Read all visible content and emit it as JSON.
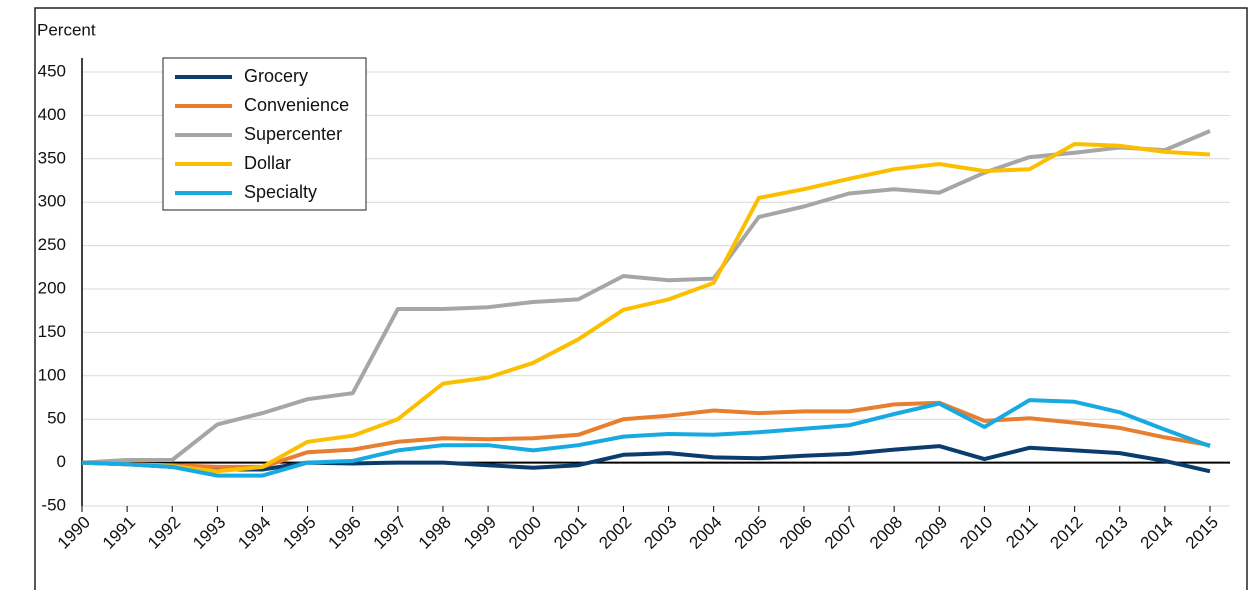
{
  "chart_data": {
    "type": "line",
    "y_label": "Percent",
    "categories": [
      "1990",
      "1991",
      "1992",
      "1993",
      "1994",
      "1995",
      "1996",
      "1997",
      "1998",
      "1999",
      "2000",
      "2001",
      "2002",
      "2003",
      "2004",
      "2005",
      "2006",
      "2007",
      "2008",
      "2009",
      "2010",
      "2011",
      "2012",
      "2013",
      "2014",
      "2015"
    ],
    "series": [
      {
        "name": "Grocery",
        "color": "#0b3c6e",
        "values": [
          0,
          -2,
          -5,
          -8,
          -8,
          0,
          -1,
          0,
          0,
          -3,
          -6,
          -3,
          9,
          11,
          6,
          5,
          8,
          10,
          15,
          19,
          4,
          17,
          14,
          11,
          2,
          -10
        ]
      },
      {
        "name": "Convenience",
        "color": "#e87e2f",
        "values": [
          0,
          -2,
          -3,
          -5,
          -5,
          12,
          15,
          24,
          28,
          27,
          28,
          32,
          50,
          54,
          60,
          57,
          59,
          59,
          67,
          69,
          48,
          51,
          46,
          40,
          29,
          20
        ]
      },
      {
        "name": "Supercenter",
        "color": "#a6a6a6",
        "values": [
          0,
          3,
          3,
          44,
          57,
          73,
          80,
          177,
          177,
          179,
          185,
          188,
          215,
          210,
          212,
          283,
          295,
          310,
          315,
          311,
          334,
          352,
          357,
          363,
          360,
          382
        ]
      },
      {
        "name": "Dollar",
        "color": "#fcbf00",
        "values": [
          0,
          -2,
          -4,
          -10,
          -5,
          24,
          31,
          50,
          91,
          98,
          115,
          142,
          176,
          188,
          207,
          305,
          315,
          327,
          338,
          344,
          336,
          338,
          367,
          365,
          358,
          355
        ]
      },
      {
        "name": "Specialty",
        "color": "#17a9e1",
        "values": [
          0,
          -2,
          -5,
          -15,
          -15,
          0,
          2,
          14,
          20,
          20,
          14,
          20,
          30,
          33,
          32,
          35,
          39,
          43,
          56,
          68,
          41,
          72,
          70,
          58,
          38,
          19
        ]
      }
    ],
    "ylim": [
      -50,
      450
    ],
    "yticks": [
      -50,
      0,
      50,
      100,
      150,
      200,
      250,
      300,
      350,
      400,
      450
    ],
    "grid": true
  }
}
